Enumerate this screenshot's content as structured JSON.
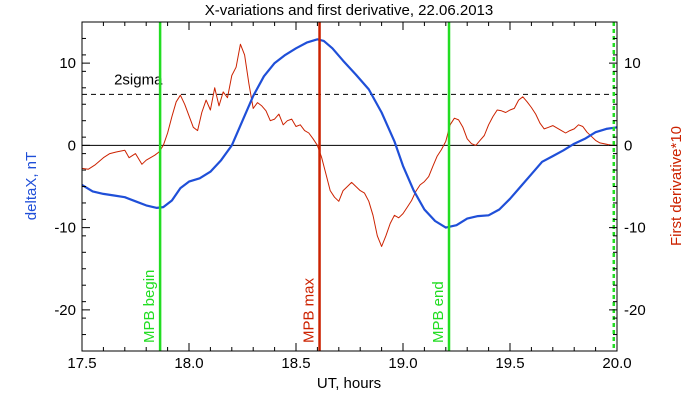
{
  "chart_data": {
    "type": "line",
    "title": "X-variations and first derivative, 22.06.2013",
    "xlabel": "UT, hours",
    "ylabel_left": "deltaX, nT",
    "ylabel_right": "First derivative*10",
    "xlim": [
      17.5,
      20.0
    ],
    "ylim": [
      -25,
      15
    ],
    "x_ticks": [
      17.5,
      18.0,
      18.5,
      19.0,
      19.5,
      20.0
    ],
    "x_tick_labels": [
      "17.5",
      "18.0",
      "18.5",
      "19.0",
      "19.5",
      "20.0"
    ],
    "y_ticks": [
      -20,
      -10,
      0,
      10
    ],
    "y_tick_labels": [
      "-20",
      "-10",
      "0",
      "10"
    ],
    "threshold": {
      "label": "2sigma",
      "value": 6.2,
      "style": "dashed"
    },
    "zero_line": 0,
    "series": [
      {
        "key": "deltaX",
        "color": "#1f4fd8",
        "x": [
          17.5,
          17.55,
          17.6,
          17.65,
          17.7,
          17.75,
          17.8,
          17.85,
          17.88,
          17.92,
          17.96,
          18.0,
          18.05,
          18.1,
          18.15,
          18.2,
          18.25,
          18.3,
          18.35,
          18.4,
          18.45,
          18.5,
          18.55,
          18.6,
          18.63,
          18.67,
          18.72,
          18.78,
          18.84,
          18.9,
          18.96,
          19.0,
          19.05,
          19.1,
          19.15,
          19.2,
          19.25,
          19.3,
          19.35,
          19.4,
          19.45,
          19.5,
          19.55,
          19.6,
          19.65,
          19.7,
          19.75,
          19.8,
          19.85,
          19.9,
          19.95,
          20.0
        ],
        "values": [
          -4.8,
          -5.6,
          -5.9,
          -6.1,
          -6.3,
          -6.8,
          -7.3,
          -7.6,
          -7.5,
          -6.7,
          -5.2,
          -4.4,
          -4.0,
          -3.2,
          -1.8,
          0.0,
          3.0,
          6.0,
          8.4,
          10.0,
          11.0,
          11.8,
          12.5,
          12.9,
          12.7,
          11.8,
          10.3,
          8.6,
          6.8,
          4.0,
          0.5,
          -2.5,
          -5.5,
          -7.8,
          -9.2,
          -10.0,
          -9.7,
          -8.9,
          -8.6,
          -8.5,
          -7.8,
          -6.5,
          -5.0,
          -3.5,
          -2.0,
          -1.3,
          -0.6,
          0.2,
          0.8,
          1.6,
          2.0,
          2.2
        ]
      },
      {
        "key": "derivative",
        "color": "#cc2200",
        "x": [
          17.5,
          17.53,
          17.56,
          17.6,
          17.63,
          17.66,
          17.7,
          17.72,
          17.75,
          17.78,
          17.8,
          17.82,
          17.84,
          17.86,
          17.88,
          17.9,
          17.92,
          17.94,
          17.96,
          17.98,
          18.0,
          18.02,
          18.04,
          18.06,
          18.08,
          18.1,
          18.12,
          18.14,
          18.16,
          18.18,
          18.2,
          18.22,
          18.24,
          18.26,
          18.28,
          18.3,
          18.32,
          18.34,
          18.36,
          18.38,
          18.4,
          18.42,
          18.44,
          18.46,
          18.48,
          18.5,
          18.52,
          18.54,
          18.56,
          18.58,
          18.6,
          18.62,
          18.64,
          18.66,
          18.68,
          18.7,
          18.72,
          18.74,
          18.76,
          18.78,
          18.8,
          18.82,
          18.84,
          18.86,
          18.88,
          18.9,
          18.92,
          18.94,
          18.96,
          18.98,
          19.0,
          19.02,
          19.04,
          19.06,
          19.08,
          19.1,
          19.12,
          19.14,
          19.16,
          19.18,
          19.2,
          19.22,
          19.24,
          19.26,
          19.28,
          19.3,
          19.32,
          19.34,
          19.36,
          19.38,
          19.4,
          19.42,
          19.44,
          19.46,
          19.48,
          19.5,
          19.52,
          19.54,
          19.56,
          19.58,
          19.6,
          19.62,
          19.64,
          19.66,
          19.68,
          19.7,
          19.72,
          19.74,
          19.76,
          19.78,
          19.8,
          19.82,
          19.84,
          19.86,
          19.88,
          19.9,
          19.92,
          19.94,
          19.96,
          19.98,
          20.0
        ],
        "values": [
          -2.8,
          -2.9,
          -2.4,
          -1.5,
          -1.0,
          -0.8,
          -0.6,
          -1.5,
          -1.0,
          -2.3,
          -1.8,
          -1.5,
          -1.2,
          -0.8,
          0.0,
          1.5,
          3.5,
          5.3,
          6.1,
          5.0,
          3.6,
          2.2,
          1.8,
          4.0,
          5.5,
          4.3,
          7.0,
          4.8,
          6.5,
          5.8,
          8.5,
          9.5,
          12.3,
          11.0,
          7.5,
          4.5,
          5.2,
          4.8,
          4.2,
          3.0,
          3.2,
          3.8,
          2.5,
          3.0,
          3.2,
          2.3,
          2.5,
          1.8,
          1.5,
          0.8,
          0.0,
          -1.5,
          -3.5,
          -5.5,
          -6.3,
          -6.8,
          -5.5,
          -5.0,
          -4.5,
          -5.0,
          -5.5,
          -5.8,
          -6.8,
          -8.5,
          -11.0,
          -12.3,
          -11.0,
          -9.5,
          -8.5,
          -8.8,
          -8.3,
          -7.5,
          -6.7,
          -5.6,
          -4.8,
          -4.4,
          -3.8,
          -2.5,
          -1.3,
          -0.5,
          0.5,
          2.5,
          3.3,
          3.1,
          2.2,
          0.8,
          0.2,
          0.0,
          0.6,
          1.2,
          2.5,
          3.5,
          4.3,
          4.2,
          4.0,
          4.3,
          4.5,
          5.5,
          5.9,
          5.3,
          4.6,
          3.8,
          2.7,
          2.0,
          2.2,
          2.4,
          2.1,
          1.8,
          1.5,
          1.8,
          2.0,
          2.5,
          2.3,
          1.6,
          1.1,
          0.6,
          0.3,
          0.2,
          0.1,
          0.0,
          0.0
        ]
      }
    ],
    "markers": [
      {
        "x": 17.865,
        "label": "MPB begin",
        "color": "#22dd22"
      },
      {
        "x": 18.61,
        "label": "MPB max",
        "color": "#cc2200"
      },
      {
        "x": 19.215,
        "label": "MPB end",
        "color": "#22dd22"
      },
      {
        "x": 19.985,
        "label": "",
        "color": "#22dd22",
        "style": "dashed"
      }
    ],
    "grid": false,
    "legend": "none"
  }
}
